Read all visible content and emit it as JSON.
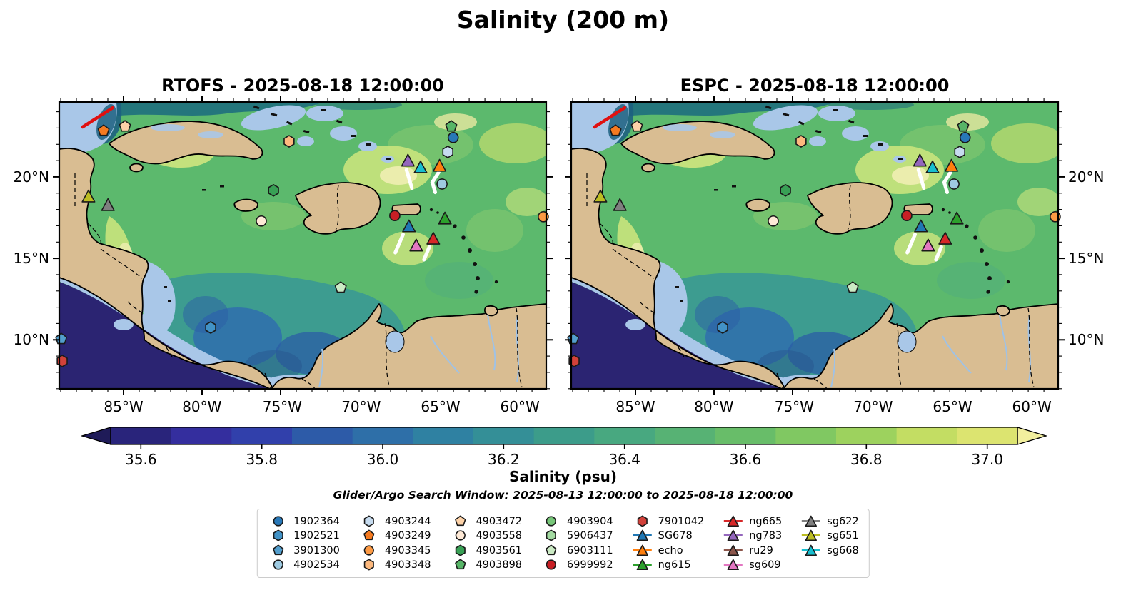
{
  "figure": {
    "title": "Salinity (200 m)"
  },
  "panels": [
    {
      "id": "rtofs",
      "title": "RTOFS - 2025-08-18 12:00:00",
      "lat_side": "left"
    },
    {
      "id": "espc",
      "title": "ESPC - 2025-08-18 12:00:00",
      "lat_side": "right"
    }
  ],
  "axes": {
    "lat_ticks": [
      {
        "label": "20°N",
        "f": 0.261
      },
      {
        "label": "15°N",
        "f": 0.545
      },
      {
        "label": "10°N",
        "f": 0.828
      }
    ],
    "lon_ticks": [
      {
        "label": "85°W",
        "f": 0.132
      },
      {
        "label": "80°W",
        "f": 0.293
      },
      {
        "label": "75°W",
        "f": 0.458
      },
      {
        "label": "70°W",
        "f": 0.62
      },
      {
        "label": "65°W",
        "f": 0.783
      },
      {
        "label": "60°W",
        "f": 0.946
      }
    ]
  },
  "colorbar": {
    "label": "Salinity (psu)",
    "under": "#1f1b58",
    "over": "#f2ef9e",
    "band_colors": [
      "#29247b",
      "#342e9e",
      "#3140ab",
      "#2d5ba8",
      "#2e6fa8",
      "#2f81a2",
      "#348f97",
      "#3c9c8a",
      "#48a880",
      "#57b274",
      "#68bd69",
      "#80c862",
      "#9dd25e",
      "#c3dd63",
      "#dce470"
    ],
    "ticks": [
      {
        "label": "35.6",
        "f": 0.0333
      },
      {
        "label": "35.8",
        "f": 0.1667
      },
      {
        "label": "36.0",
        "f": 0.3
      },
      {
        "label": "36.2",
        "f": 0.4333
      },
      {
        "label": "36.4",
        "f": 0.5667
      },
      {
        "label": "36.6",
        "f": 0.7
      },
      {
        "label": "36.8",
        "f": 0.8333
      },
      {
        "label": "37.0",
        "f": 0.9667
      }
    ]
  },
  "search_window": "Glider/Argo Search Window: 2025-08-13 12:00:00 to 2025-08-18 12:00:00",
  "legend": {
    "columns": [
      [
        {
          "label": "1902364",
          "shape": "circle",
          "color": "#2878b8"
        },
        {
          "label": "1902521",
          "shape": "hexagon",
          "color": "#4292c6"
        },
        {
          "label": "3901300",
          "shape": "pentagon",
          "color": "#539ecd"
        },
        {
          "label": "4902534",
          "shape": "circle",
          "color": "#9ecae1"
        }
      ],
      [
        {
          "label": "4903244",
          "shape": "hexagon",
          "color": "#c6dbef"
        },
        {
          "label": "4903249",
          "shape": "pentagon",
          "color": "#f57a20"
        },
        {
          "label": "4903345",
          "shape": "circle",
          "color": "#fd9a44"
        },
        {
          "label": "4903348",
          "shape": "hexagon",
          "color": "#fdb97e"
        }
      ],
      [
        {
          "label": "4903472",
          "shape": "pentagon",
          "color": "#fdd2a8"
        },
        {
          "label": "4903558",
          "shape": "circle",
          "color": "#fee9d6"
        },
        {
          "label": "4903561",
          "shape": "hexagon",
          "color": "#38a055"
        },
        {
          "label": "4903898",
          "shape": "pentagon",
          "color": "#57b567"
        }
      ],
      [
        {
          "label": "4903904",
          "shape": "circle",
          "color": "#77c779"
        },
        {
          "label": "5906437",
          "shape": "hexagon",
          "color": "#a4dba2"
        },
        {
          "label": "6903111",
          "shape": "pentagon",
          "color": "#cbeac4"
        },
        {
          "label": "6999992",
          "shape": "circle",
          "color": "#c81f25"
        }
      ],
      [
        {
          "label": "7901042",
          "shape": "hexagon",
          "color": "#d2413a"
        },
        {
          "label": "SG678",
          "shape": "glider",
          "color": "#1f77b4"
        },
        {
          "label": "echo",
          "shape": "glider",
          "color": "#ff7f0e"
        },
        {
          "label": "ng615",
          "shape": "glider",
          "color": "#2ca02c"
        }
      ],
      [
        {
          "label": "ng665",
          "shape": "glider",
          "color": "#d62728"
        },
        {
          "label": "ng783",
          "shape": "glider",
          "color": "#9467bd"
        },
        {
          "label": "ru29",
          "shape": "glider",
          "color": "#8c564b"
        },
        {
          "label": "sg609",
          "shape": "glider",
          "color": "#e377c2"
        }
      ],
      [
        {
          "label": "sg622",
          "shape": "glider",
          "color": "#7f7f7f"
        },
        {
          "label": "sg651",
          "shape": "glider",
          "color": "#bcbd22"
        },
        {
          "label": "sg668",
          "shape": "glider",
          "color": "#17becf"
        }
      ]
    ]
  },
  "markers": [
    {
      "id": "4903249",
      "shape": "pentagon",
      "color": "#f57a20",
      "fx": 0.091,
      "fy": 0.1
    },
    {
      "id": "4903472",
      "shape": "pentagon",
      "color": "#fdd2a8",
      "fx": 0.135,
      "fy": 0.085
    },
    {
      "id": "4903348",
      "shape": "hexagon",
      "color": "#fdb97e",
      "fx": 0.472,
      "fy": 0.137
    },
    {
      "id": "4903898",
      "shape": "pentagon",
      "color": "#57b567",
      "fx": 0.805,
      "fy": 0.085
    },
    {
      "id": "1902364",
      "shape": "circle",
      "color": "#2878b8",
      "fx": 0.809,
      "fy": 0.124
    },
    {
      "id": "4903244",
      "shape": "hexagon",
      "color": "#c6dbef",
      "fx": 0.798,
      "fy": 0.174
    },
    {
      "id": "ng783",
      "shape": "triangle",
      "color": "#9467bd",
      "fx": 0.716,
      "fy": 0.206
    },
    {
      "id": "sg668",
      "shape": "triangle",
      "color": "#17becf",
      "fx": 0.742,
      "fy": 0.229
    },
    {
      "id": "echo",
      "shape": "triangle",
      "color": "#ff7f0e",
      "fx": 0.781,
      "fy": 0.224
    },
    {
      "id": "4902534",
      "shape": "circle",
      "color": "#9ecae1",
      "fx": 0.786,
      "fy": 0.286
    },
    {
      "id": "4903561",
      "shape": "hexagon",
      "color": "#38a055",
      "fx": 0.44,
      "fy": 0.308
    },
    {
      "id": "sg651",
      "shape": "triangle",
      "color": "#bcbd22",
      "fx": 0.06,
      "fy": 0.331
    },
    {
      "id": "sg622",
      "shape": "triangle",
      "color": "#7f7f7f",
      "fx": 0.1,
      "fy": 0.361
    },
    {
      "id": "4903558",
      "shape": "circle",
      "color": "#fee9d6",
      "fx": 0.415,
      "fy": 0.415
    },
    {
      "id": "6999992",
      "shape": "circle",
      "color": "#c81f25",
      "fx": 0.689,
      "fy": 0.396
    },
    {
      "id": "SG678",
      "shape": "triangle",
      "color": "#1f77b4",
      "fx": 0.718,
      "fy": 0.435
    },
    {
      "id": "ng615",
      "shape": "triangle",
      "color": "#2ca02c",
      "fx": 0.792,
      "fy": 0.408
    },
    {
      "id": "ng665",
      "shape": "triangle",
      "color": "#d62728",
      "fx": 0.768,
      "fy": 0.478
    },
    {
      "id": "sg609",
      "shape": "triangle",
      "color": "#e377c2",
      "fx": 0.733,
      "fy": 0.502
    },
    {
      "id": "4903345",
      "shape": "circle",
      "color": "#fd9a44",
      "fx": 0.994,
      "fy": 0.4
    },
    {
      "id": "6903111",
      "shape": "pentagon",
      "color": "#cbeac4",
      "fx": 0.578,
      "fy": 0.647
    },
    {
      "id": "1902521",
      "shape": "hexagon",
      "color": "#4292c6",
      "fx": 0.311,
      "fy": 0.786
    },
    {
      "id": "3901300",
      "shape": "pentagon",
      "color": "#539ecd",
      "fx": 0.004,
      "fy": 0.826
    },
    {
      "id": "7901042",
      "shape": "hexagon",
      "color": "#d2413a",
      "fx": 0.006,
      "fy": 0.903
    }
  ],
  "tracks": [
    {
      "color": "#e01010",
      "width": 4.5,
      "points": [
        [
          0.048,
          0.087
        ],
        [
          0.11,
          0.02
        ]
      ]
    },
    {
      "color": "#ffffff",
      "width": 5,
      "points": [
        [
          0.713,
          0.236
        ],
        [
          0.724,
          0.3
        ]
      ]
    },
    {
      "color": "#ffffff",
      "width": 5,
      "points": [
        [
          0.779,
          0.245
        ],
        [
          0.766,
          0.28
        ],
        [
          0.772,
          0.315
        ]
      ]
    },
    {
      "color": "#ffffff",
      "width": 5,
      "points": [
        [
          0.706,
          0.462
        ],
        [
          0.69,
          0.525
        ]
      ]
    },
    {
      "color": "#ffffff",
      "width": 5,
      "points": [
        [
          0.76,
          0.505
        ],
        [
          0.749,
          0.55
        ]
      ]
    }
  ],
  "chart_data": {
    "type": "heatmap",
    "title": "Salinity (200 m)",
    "subplots": [
      "RTOFS - 2025-08-18 12:00:00",
      "ESPC - 2025-08-18 12:00:00"
    ],
    "xlabel": "",
    "ylabel": "",
    "x_ticks": [
      "85°W",
      "80°W",
      "75°W",
      "70°W",
      "65°W",
      "60°W"
    ],
    "y_ticks": [
      "20°N",
      "15°N",
      "10°N"
    ],
    "lon_range": [
      -89.0,
      -58.3
    ],
    "lat_range": [
      7.0,
      24.6
    ],
    "colorbar": {
      "label": "Salinity (psu)",
      "ticks": [
        35.6,
        35.8,
        36.0,
        36.2,
        36.4,
        36.6,
        36.8,
        37.0
      ],
      "range": [
        35.55,
        37.05
      ]
    },
    "annotation": "Glider/Argo Search Window: 2025-08-13 12:00:00 to 2025-08-18 12:00:00",
    "platforms": [
      {
        "id": "4903249",
        "type": "float",
        "lon": -86.3,
        "lat": 22.8
      },
      {
        "id": "4903472",
        "type": "float",
        "lon": -84.9,
        "lat": 23.1
      },
      {
        "id": "4903348",
        "type": "float",
        "lon": -74.6,
        "lat": 22.2
      },
      {
        "id": "4903898",
        "type": "float",
        "lon": -64.3,
        "lat": 23.1
      },
      {
        "id": "1902364",
        "type": "float",
        "lon": -64.2,
        "lat": 22.4
      },
      {
        "id": "4903244",
        "type": "float",
        "lon": -64.5,
        "lat": 21.5
      },
      {
        "id": "ng783",
        "type": "glider",
        "lon": -67.1,
        "lat": 21.0
      },
      {
        "id": "sg668",
        "type": "glider",
        "lon": -66.3,
        "lat": 20.6
      },
      {
        "id": "echo",
        "type": "glider",
        "lon": -65.1,
        "lat": 20.7
      },
      {
        "id": "4902534",
        "type": "float",
        "lon": -64.9,
        "lat": 19.6
      },
      {
        "id": "4903561",
        "type": "float",
        "lon": -75.5,
        "lat": 19.2
      },
      {
        "id": "sg651",
        "type": "glider",
        "lon": -87.2,
        "lat": 18.8
      },
      {
        "id": "sg622",
        "type": "glider",
        "lon": -86.0,
        "lat": 18.2
      },
      {
        "id": "4903558",
        "type": "float",
        "lon": -76.3,
        "lat": 17.3
      },
      {
        "id": "6999992",
        "type": "float",
        "lon": -67.9,
        "lat": 17.6
      },
      {
        "id": "SG678",
        "type": "glider",
        "lon": -67.0,
        "lat": 16.9
      },
      {
        "id": "ng615",
        "type": "glider",
        "lon": -64.7,
        "lat": 17.4
      },
      {
        "id": "ng665",
        "type": "glider",
        "lon": -65.5,
        "lat": 16.2
      },
      {
        "id": "sg609",
        "type": "glider",
        "lon": -66.5,
        "lat": 15.8
      },
      {
        "id": "4903345",
        "type": "float",
        "lon": -58.5,
        "lat": 17.6
      },
      {
        "id": "6903111",
        "type": "float",
        "lon": -71.3,
        "lat": 13.2
      },
      {
        "id": "1902521",
        "type": "float",
        "lon": -79.5,
        "lat": 10.8
      },
      {
        "id": "3901300",
        "type": "float",
        "lon": -88.9,
        "lat": 10.1
      },
      {
        "id": "7901042",
        "type": "float",
        "lon": -88.9,
        "lat": 8.7
      }
    ]
  }
}
